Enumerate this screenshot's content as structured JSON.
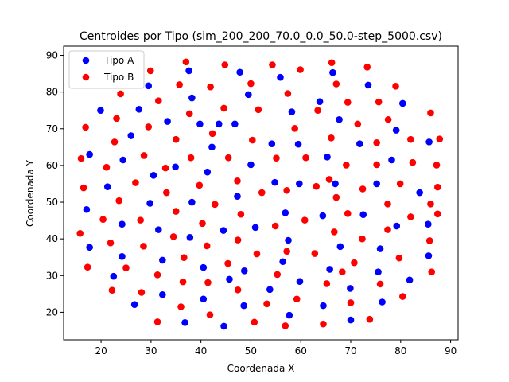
{
  "chart_data": {
    "type": "scatter",
    "title": "Centroides por Tipo (sim_200_200_70.0_0.0_50.0-step_5000.csv)",
    "xlabel": "Coordenada X",
    "ylabel": "Coordenada Y",
    "xlim": [
      12.5,
      91.5
    ],
    "ylim": [
      12.5,
      92.5
    ],
    "xticks": [
      20,
      30,
      40,
      50,
      60,
      70,
      80,
      90
    ],
    "yticks": [
      20,
      30,
      40,
      50,
      60,
      70,
      80,
      90
    ],
    "grid": false,
    "legend_position": "top-left",
    "series": [
      {
        "name": "Tipo A",
        "color": "#0000ff",
        "points": [
          [
            17.7,
            63
          ],
          [
            17.1,
            48
          ],
          [
            17.7,
            37.7
          ],
          [
            19.9,
            75
          ],
          [
            21.3,
            54.2
          ],
          [
            22.5,
            29.8
          ],
          [
            24.4,
            61.5
          ],
          [
            24.2,
            44
          ],
          [
            24.2,
            35.2
          ],
          [
            26,
            68.1
          ],
          [
            26.7,
            22.1
          ],
          [
            27.6,
            75.3
          ],
          [
            29.5,
            81.7
          ],
          [
            29.8,
            49.7
          ],
          [
            30.5,
            57.3
          ],
          [
            31.5,
            42.5
          ],
          [
            32.3,
            34.2
          ],
          [
            32.3,
            24.8
          ],
          [
            33.3,
            72
          ],
          [
            34.9,
            59.6
          ],
          [
            36.8,
            17.2
          ],
          [
            37.6,
            85.8
          ],
          [
            38.2,
            78.4
          ],
          [
            38.2,
            50
          ],
          [
            37.8,
            40.4
          ],
          [
            39.8,
            71.3
          ],
          [
            40.5,
            32.2
          ],
          [
            40.5,
            23.6
          ],
          [
            41.3,
            58.2
          ],
          [
            42.2,
            65
          ],
          [
            43.6,
            71.3
          ],
          [
            44.5,
            42.3
          ],
          [
            44.6,
            16.2
          ],
          [
            45.7,
            29
          ],
          [
            46.8,
            71.3
          ],
          [
            47.3,
            51.6
          ],
          [
            47.8,
            85.4
          ],
          [
            48.7,
            31.3
          ],
          [
            48.6,
            21.8
          ],
          [
            49.5,
            79.3
          ],
          [
            50,
            60.2
          ],
          [
            50.9,
            43.1
          ],
          [
            53.8,
            26.2
          ],
          [
            54.2,
            65.9
          ],
          [
            54.8,
            55.4
          ],
          [
            55.9,
            84
          ],
          [
            56.4,
            33.8
          ],
          [
            56.9,
            47.1
          ],
          [
            57.5,
            39.6
          ],
          [
            57.7,
            19.2
          ],
          [
            58.2,
            74.6
          ],
          [
            59.5,
            65.8
          ],
          [
            59.7,
            55
          ],
          [
            59.8,
            28.4
          ],
          [
            63.8,
            77.4
          ],
          [
            64.4,
            46.3
          ],
          [
            64.5,
            21.8
          ],
          [
            65.3,
            62.3
          ],
          [
            65.8,
            31.7
          ],
          [
            66.4,
            85.3
          ],
          [
            66.9,
            55
          ],
          [
            67.7,
            72.5
          ],
          [
            67.9,
            37.9
          ],
          [
            69.9,
            26.5
          ],
          [
            70,
            17.9
          ],
          [
            71.8,
            65.9
          ],
          [
            72.5,
            46.6
          ],
          [
            73.5,
            81.9
          ],
          [
            75.2,
            55
          ],
          [
            75.5,
            31
          ],
          [
            75.9,
            37.3
          ],
          [
            76.3,
            22.8
          ],
          [
            78.2,
            61.5
          ],
          [
            79.1,
            69.6
          ],
          [
            79.2,
            43.5
          ],
          [
            80.4,
            76.9
          ],
          [
            81.8,
            28.8
          ],
          [
            83.8,
            52.6
          ],
          [
            85.7,
            66.4
          ],
          [
            85.5,
            44
          ],
          [
            85.6,
            35.4
          ]
        ]
      },
      {
        "name": "Tipo B",
        "color": "#ff0000",
        "points": [
          [
            16,
            61.9
          ],
          [
            16.5,
            53.9
          ],
          [
            15.8,
            41.5
          ],
          [
            16.9,
            70.4
          ],
          [
            17.3,
            32.3
          ],
          [
            20.4,
            45.3
          ],
          [
            21.1,
            59.5
          ],
          [
            21.9,
            38.9
          ],
          [
            22.2,
            26
          ],
          [
            22.7,
            66.4
          ],
          [
            23.1,
            72.8
          ],
          [
            23.6,
            50.4
          ],
          [
            23.9,
            79.5
          ],
          [
            25,
            32.1
          ],
          [
            26.9,
            55.3
          ],
          [
            27.9,
            45.1
          ],
          [
            28.1,
            25.4
          ],
          [
            28.5,
            38
          ],
          [
            28.6,
            62.7
          ],
          [
            29.5,
            70.5
          ],
          [
            29.9,
            85.8
          ],
          [
            31.3,
            30.2
          ],
          [
            31.3,
            17.4
          ],
          [
            31.5,
            77.6
          ],
          [
            32.9,
            59.3
          ],
          [
            33.1,
            52.6
          ],
          [
            34.5,
            40.6
          ],
          [
            35,
            47.5
          ],
          [
            35,
            67.1
          ],
          [
            35.7,
            82
          ],
          [
            36,
            21.5
          ],
          [
            36.4,
            28.3
          ],
          [
            36.6,
            34.9
          ],
          [
            37,
            88.2
          ],
          [
            37.7,
            74.1
          ],
          [
            38,
            62.1
          ],
          [
            39.7,
            54.6
          ],
          [
            40.3,
            44.2
          ],
          [
            41.2,
            38.1
          ],
          [
            41.4,
            28.1
          ],
          [
            41.8,
            19.3
          ],
          [
            41.9,
            81.4
          ],
          [
            42.3,
            68.7
          ],
          [
            42.8,
            49.4
          ],
          [
            44.6,
            75.6
          ],
          [
            44.8,
            87.4
          ],
          [
            45.4,
            33.3
          ],
          [
            45.5,
            62.1
          ],
          [
            47.3,
            55.8
          ],
          [
            47.4,
            26.1
          ],
          [
            47.4,
            39.7
          ],
          [
            48,
            46.7
          ],
          [
            50,
            82.3
          ],
          [
            50.3,
            66.9
          ],
          [
            50.7,
            17.3
          ],
          [
            51.2,
            35.9
          ],
          [
            51.5,
            75.2
          ],
          [
            52.2,
            52.6
          ],
          [
            53.2,
            22.3
          ],
          [
            54.3,
            87.4
          ],
          [
            54.9,
            43.5
          ],
          [
            55.1,
            62
          ],
          [
            55.3,
            30.3
          ],
          [
            56.9,
            16.3
          ],
          [
            57.2,
            36.6
          ],
          [
            57.2,
            53.2
          ],
          [
            57.4,
            79.6
          ],
          [
            58.8,
            70.1
          ],
          [
            59.2,
            23.6
          ],
          [
            59.9,
            86.1
          ],
          [
            60.8,
            45.1
          ],
          [
            61,
            62.1
          ],
          [
            62.8,
            36
          ],
          [
            63.1,
            54.3
          ],
          [
            63.4,
            75
          ],
          [
            64.5,
            16.8
          ],
          [
            65.2,
            27.8
          ],
          [
            65.7,
            56.2
          ],
          [
            66.1,
            67.5
          ],
          [
            66.2,
            88
          ],
          [
            66.7,
            41.9
          ],
          [
            67.1,
            82.2
          ],
          [
            67.1,
            51.3
          ],
          [
            68.3,
            31
          ],
          [
            69.1,
            60.1
          ],
          [
            69.4,
            77.2
          ],
          [
            69.4,
            46.9
          ],
          [
            70,
            22.6
          ],
          [
            70.7,
            33.5
          ],
          [
            71.4,
            71.3
          ],
          [
            72.4,
            53.6
          ],
          [
            72.3,
            40
          ],
          [
            73.3,
            86.8
          ],
          [
            73.8,
            18.1
          ],
          [
            75.2,
            60.2
          ],
          [
            75.2,
            66.2
          ],
          [
            75.6,
            77.3
          ],
          [
            75.9,
            27.7
          ],
          [
            77.4,
            42.5
          ],
          [
            77.4,
            49.5
          ],
          [
            77.5,
            72.5
          ],
          [
            79,
            81.6
          ],
          [
            79.7,
            34.8
          ],
          [
            79.9,
            55
          ],
          [
            80.4,
            24.3
          ],
          [
            82,
            67.1
          ],
          [
            82,
            46
          ],
          [
            82.4,
            60.8
          ],
          [
            86,
            74.3
          ],
          [
            85.8,
            39.5
          ],
          [
            86.2,
            31
          ],
          [
            86,
            49.5
          ],
          [
            87.2,
            60.1
          ],
          [
            87.4,
            54.1
          ],
          [
            87.4,
            46.8
          ],
          [
            87.8,
            67.2
          ]
        ]
      }
    ]
  }
}
